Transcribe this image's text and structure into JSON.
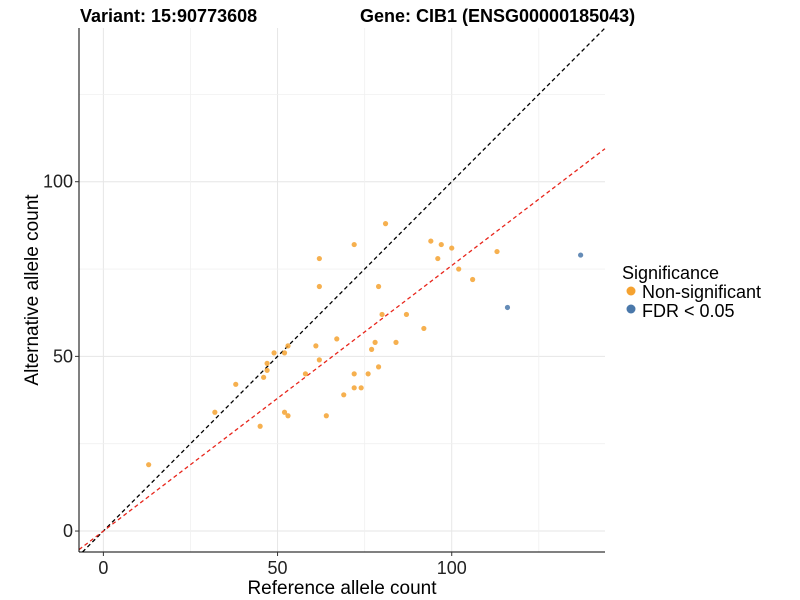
{
  "chart_data": {
    "type": "scatter",
    "title_variant": "Variant: 15:90773608",
    "title_gene": "Gene: CIB1 (ENSG00000185043)",
    "xlabel": "Reference allele count",
    "ylabel": "Alternative allele count",
    "xlim": [
      -7,
      144
    ],
    "ylim": [
      -6,
      144
    ],
    "xticks": [
      0,
      50,
      100
    ],
    "yticks": [
      0,
      50,
      100
    ],
    "x_minor_gridlines": [
      25,
      75,
      125
    ],
    "y_minor_gridlines": [
      25,
      75,
      125
    ],
    "legend": {
      "title": "Significance",
      "placement": "right",
      "entries": [
        {
          "label": "Non-significant",
          "color": "#F5A230"
        },
        {
          "label": "FDR < 0.05",
          "color": "#4A78AA"
        }
      ]
    },
    "reference_lines": [
      {
        "name": "identity",
        "slope": 1.0,
        "intercept": 0,
        "color": "#000000",
        "style": "dashed"
      },
      {
        "name": "fit",
        "slope": 0.76,
        "intercept": 0,
        "color": "#E8261C",
        "style": "dashed"
      }
    ],
    "series": [
      {
        "name": "Non-significant",
        "color": "#F5A230",
        "points": [
          [
            13,
            19
          ],
          [
            32,
            34
          ],
          [
            38,
            42
          ],
          [
            45,
            30
          ],
          [
            46,
            44
          ],
          [
            47,
            46
          ],
          [
            47,
            48
          ],
          [
            49,
            51
          ],
          [
            52,
            51
          ],
          [
            52,
            34
          ],
          [
            53,
            53
          ],
          [
            53,
            33
          ],
          [
            58,
            45
          ],
          [
            61,
            53
          ],
          [
            62,
            49
          ],
          [
            62,
            70
          ],
          [
            62,
            78
          ],
          [
            64,
            33
          ],
          [
            67,
            55
          ],
          [
            69,
            39
          ],
          [
            72,
            45
          ],
          [
            72,
            41
          ],
          [
            72,
            82
          ],
          [
            74,
            41
          ],
          [
            76,
            45
          ],
          [
            77,
            52
          ],
          [
            78,
            54
          ],
          [
            79,
            47
          ],
          [
            79,
            70
          ],
          [
            80,
            62
          ],
          [
            81,
            88
          ],
          [
            84,
            54
          ],
          [
            87,
            62
          ],
          [
            92,
            58
          ],
          [
            94,
            83
          ],
          [
            96,
            78
          ],
          [
            97,
            82
          ],
          [
            100,
            81
          ],
          [
            102,
            75
          ],
          [
            106,
            72
          ],
          [
            113,
            80
          ]
        ]
      },
      {
        "name": "FDR < 0.05",
        "color": "#4A78AA",
        "points": [
          [
            116,
            64
          ],
          [
            137,
            79
          ]
        ]
      }
    ]
  }
}
